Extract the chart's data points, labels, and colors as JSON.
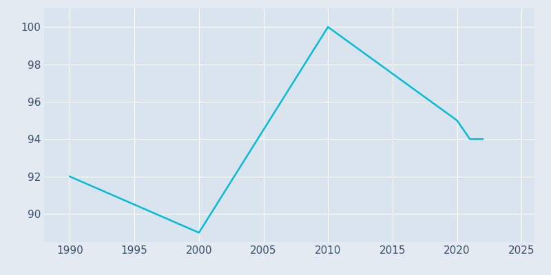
{
  "years": [
    1990,
    2000,
    2010,
    2020,
    2021,
    2022
  ],
  "population": [
    92,
    89,
    100,
    95,
    94,
    94
  ],
  "line_color": "#00BCD4",
  "bg_color": "#E3EAF2",
  "plot_bg_color": "#D9E4EE",
  "xlabel": "",
  "ylabel": "",
  "xlim": [
    1988,
    2026
  ],
  "ylim": [
    88.5,
    101
  ],
  "xticks": [
    1990,
    1995,
    2000,
    2005,
    2010,
    2015,
    2020,
    2025
  ],
  "yticks": [
    90,
    92,
    94,
    96,
    98,
    100
  ],
  "grid_color": "#FFFFFF",
  "line_width": 1.8,
  "tick_label_color": "#3A4F6B",
  "tick_label_size": 11
}
